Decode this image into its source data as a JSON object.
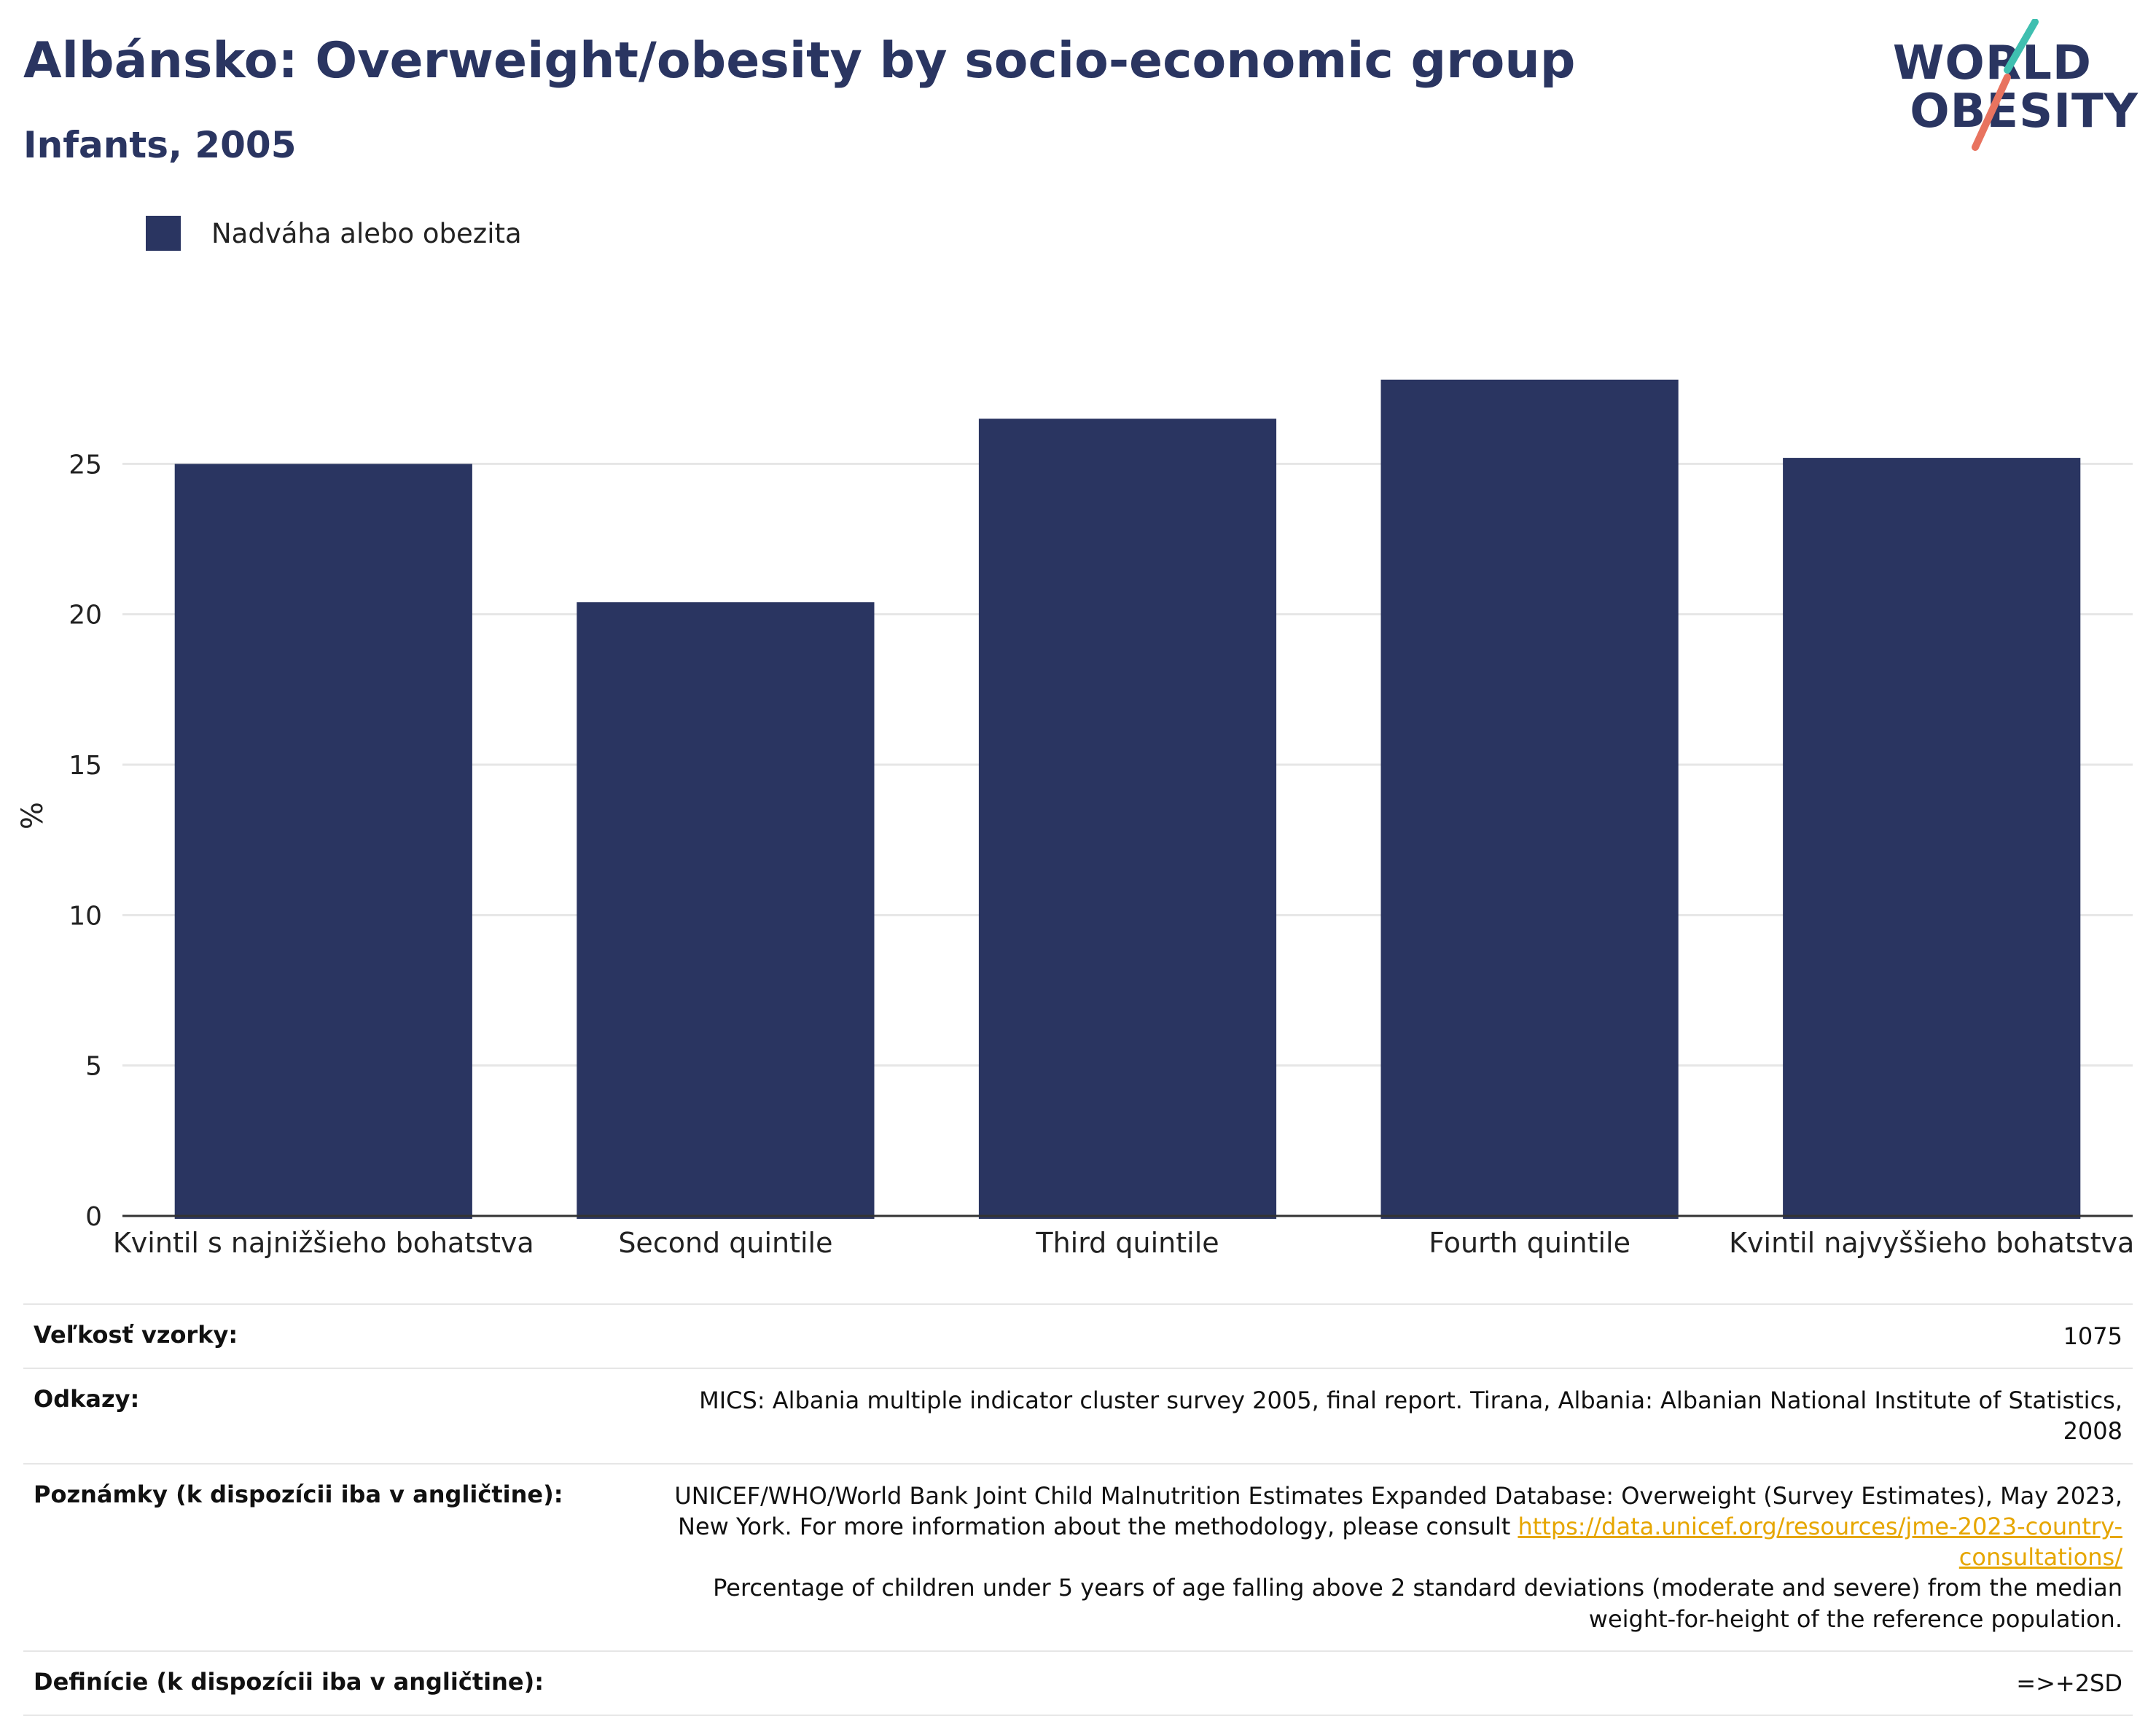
{
  "header": {
    "title": "Albánsko: Overweight/obesity by socio-economic group",
    "subtitle": "Infants, 2005"
  },
  "logo": {
    "line1": "WORLD",
    "line2": "OBESITY",
    "accent_teal": "#3fbfb0",
    "accent_coral": "#e8735f"
  },
  "colors": {
    "bar": "#2a3561",
    "title": "#2a3561",
    "grid": "#e6e6e6",
    "link": "#e6a600"
  },
  "chart_data": {
    "type": "bar",
    "categories": [
      "Kvintil s najnižšieho bohatstva",
      "Second quintile",
      "Third quintile",
      "Fourth quintile",
      "Kvintil najvyššieho bohatstva"
    ],
    "series": [
      {
        "name": "Nadváha alebo obezita",
        "values": [
          25.0,
          20.4,
          26.5,
          27.8,
          25.2
        ]
      }
    ],
    "ylabel": "%",
    "ylim": [
      0,
      30
    ],
    "yticks": [
      0,
      5,
      10,
      15,
      20,
      25
    ],
    "grid": true,
    "legend": "top-left"
  },
  "info": {
    "sample": {
      "label": "Veľkosť vzorky:",
      "value": "1075"
    },
    "references": {
      "label": "Odkazy:",
      "value": "MICS: Albania multiple indicator cluster survey 2005, final report. Tirana, Albania: Albanian National Institute of Statistics, 2008"
    },
    "notes": {
      "label": "Poznámky (k dispozícii iba v angličtine):",
      "text_before": "UNICEF/WHO/World Bank Joint Child Malnutrition Estimates Expanded Database: Overweight (Survey Estimates), May 2023, New York. For more information about the methodology, please consult ",
      "link": "https://data.unicef.org/resources/jme-2023-country-consultations/",
      "text_after": "Percentage of children under 5 years of age falling above 2 standard deviations (moderate and severe) from the median weight-for-height of the reference population."
    },
    "definitions": {
      "label": "Definície (k dispozícii iba v angličtine):",
      "value": "=>+2SD"
    }
  }
}
